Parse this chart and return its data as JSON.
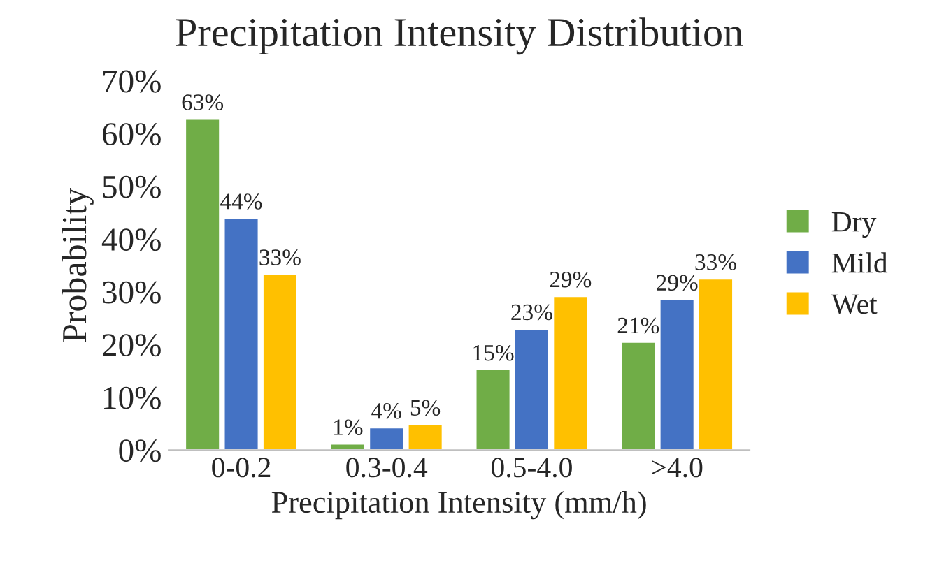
{
  "chart_data": {
    "type": "bar",
    "title": "Precipitation Intensity Distribution",
    "xlabel": "Precipitation Intensity (mm/h)",
    "ylabel": "Probability",
    "categories": [
      "0-0.2",
      "0.3-0.4",
      "0.5-4.0",
      ">4.0"
    ],
    "series": [
      {
        "name": "Dry",
        "color": "#70ad47",
        "values": [
          62.8,
          1.2,
          15.3,
          20.5
        ],
        "value_labels": [
          "63%",
          "1%",
          "15%",
          "21%"
        ]
      },
      {
        "name": "Mild",
        "color": "#4472c4",
        "values": [
          44,
          4.3,
          23,
          28.6
        ],
        "value_labels": [
          "44%",
          "4%",
          "23%",
          "29%"
        ]
      },
      {
        "name": "Wet",
        "color": "#ffc000",
        "values": [
          33.4,
          4.9,
          29.2,
          32.5
        ],
        "value_labels": [
          "33%",
          "5%",
          "29%",
          "33%"
        ]
      }
    ],
    "ylim": [
      0,
      70
    ],
    "yticks": [
      {
        "value": 0,
        "label": "0%"
      },
      {
        "value": 10,
        "label": "10%"
      },
      {
        "value": 20,
        "label": "20%"
      },
      {
        "value": 30,
        "label": "30%"
      },
      {
        "value": 40,
        "label": "40%"
      },
      {
        "value": 50,
        "label": "50%"
      },
      {
        "value": 60,
        "label": "60%"
      },
      {
        "value": 70,
        "label": "70%"
      }
    ],
    "legend": "right"
  }
}
